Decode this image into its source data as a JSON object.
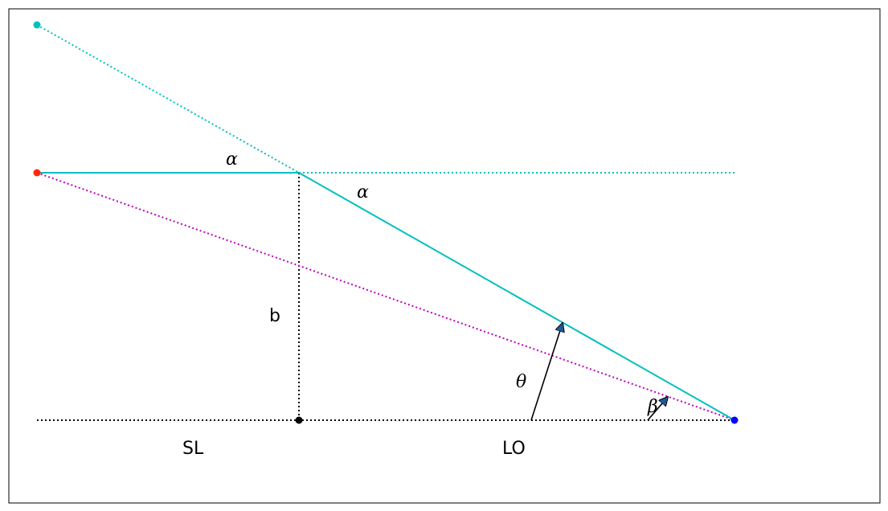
{
  "labels": {
    "alpha_top": "α",
    "alpha_mid": "α",
    "b": "b",
    "theta": "θ",
    "beta": "β",
    "sl": "SL",
    "lo": "LO"
  },
  "colors": {
    "cyan": "#00bfbf",
    "magenta": "#bf00bf",
    "red": "#ff2a00",
    "blue": "#0000ff",
    "black": "#000000",
    "arrow_fill": "#1f5a96"
  },
  "icons": {
    "arrow_head": "triangle-arrowhead-icon",
    "point": "circle-point-icon"
  }
}
